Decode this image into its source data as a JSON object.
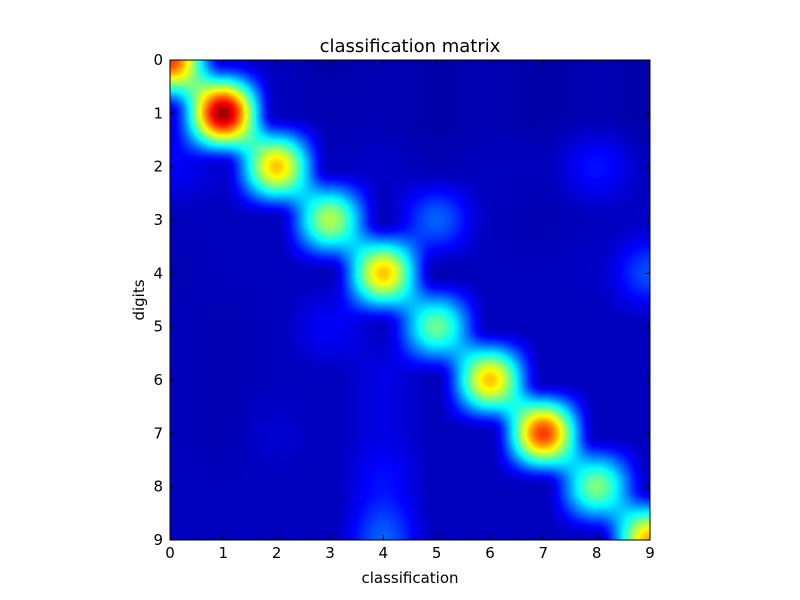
{
  "chart_data": {
    "type": "heatmap",
    "title": "classification matrix",
    "xlabel": "classification",
    "ylabel": "digits",
    "x_ticks": [
      "0",
      "1",
      "2",
      "3",
      "4",
      "5",
      "6",
      "7",
      "8",
      "9"
    ],
    "y_ticks": [
      "0",
      "1",
      "2",
      "3",
      "4",
      "5",
      "6",
      "7",
      "8",
      "9"
    ],
    "xlim": [
      0,
      9
    ],
    "ylim": [
      9,
      0
    ],
    "colormap": "jet",
    "interpolation": "bicubic",
    "vmin": 0,
    "vmax": 1,
    "matrix": [
      [
        0.82,
        0.1,
        0.06,
        0.04,
        0.05,
        0.04,
        0.05,
        0.04,
        0.05,
        0.04
      ],
      [
        0.1,
        0.97,
        0.06,
        0.05,
        0.05,
        0.04,
        0.05,
        0.04,
        0.05,
        0.04
      ],
      [
        0.12,
        0.08,
        0.68,
        0.06,
        0.07,
        0.05,
        0.06,
        0.06,
        0.14,
        0.06
      ],
      [
        0.06,
        0.06,
        0.06,
        0.55,
        0.06,
        0.22,
        0.06,
        0.05,
        0.06,
        0.07
      ],
      [
        0.05,
        0.06,
        0.06,
        0.06,
        0.68,
        0.05,
        0.06,
        0.06,
        0.07,
        0.2
      ],
      [
        0.06,
        0.05,
        0.06,
        0.12,
        0.07,
        0.48,
        0.06,
        0.06,
        0.06,
        0.06
      ],
      [
        0.06,
        0.05,
        0.06,
        0.06,
        0.1,
        0.06,
        0.68,
        0.06,
        0.06,
        0.06
      ],
      [
        0.06,
        0.05,
        0.08,
        0.06,
        0.1,
        0.06,
        0.06,
        0.82,
        0.06,
        0.06
      ],
      [
        0.06,
        0.06,
        0.06,
        0.06,
        0.14,
        0.06,
        0.06,
        0.06,
        0.5,
        0.07
      ],
      [
        0.06,
        0.06,
        0.06,
        0.06,
        0.22,
        0.06,
        0.06,
        0.06,
        0.06,
        0.7
      ]
    ]
  }
}
